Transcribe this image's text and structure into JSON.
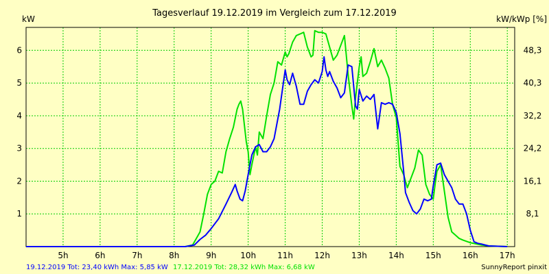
{
  "chart_data": {
    "type": "line",
    "title": "Tagesverlauf 19.12.2019 im Vergleich zum 17.12.2019",
    "ylabel_left": "kW",
    "ylabel_right": "kW/kWp [%]",
    "x_ticks": [
      "5h",
      "6h",
      "7h",
      "8h",
      "9h",
      "10h",
      "11h",
      "12h",
      "13h",
      "14h",
      "15h",
      "16h",
      "17h"
    ],
    "x_tick_values": [
      5,
      6,
      7,
      8,
      9,
      10,
      11,
      12,
      13,
      14,
      15,
      16,
      17
    ],
    "y_ticks_left": [
      "1",
      "2",
      "3",
      "4",
      "5",
      "6"
    ],
    "y_tick_values_left": [
      1,
      2,
      3,
      4,
      5,
      6
    ],
    "y_ticks_right": [
      "8,1",
      "16,1",
      "24,2",
      "32,2",
      "40,3",
      "48,3"
    ],
    "xlim": [
      4.0,
      17.2
    ],
    "ylim": [
      0,
      6.7
    ],
    "grid": true,
    "series": [
      {
        "name": "19.12.2019",
        "color": "#0000FF",
        "x": [
          4.0,
          8.3,
          8.55,
          8.7,
          8.85,
          9.0,
          9.2,
          9.4,
          9.55,
          9.65,
          9.7,
          9.78,
          9.85,
          9.92,
          10.0,
          10.1,
          10.2,
          10.3,
          10.4,
          10.5,
          10.6,
          10.7,
          10.85,
          11.0,
          11.05,
          11.12,
          11.2,
          11.3,
          11.4,
          11.5,
          11.6,
          11.7,
          11.8,
          11.9,
          12.0,
          12.05,
          12.1,
          12.15,
          12.2,
          12.3,
          12.4,
          12.5,
          12.6,
          12.7,
          12.8,
          12.9,
          12.95,
          13.0,
          13.1,
          13.2,
          13.3,
          13.4,
          13.5,
          13.6,
          13.7,
          13.8,
          13.9,
          14.0,
          14.1,
          14.2,
          14.25,
          14.35,
          14.45,
          14.55,
          14.65,
          14.75,
          14.85,
          14.95,
          15.0,
          15.1,
          15.2,
          15.3,
          15.4,
          15.5,
          15.6,
          15.7,
          15.8,
          15.9,
          16.0,
          16.1,
          16.2,
          16.3,
          16.4,
          16.5,
          17.0
        ],
        "y": [
          0,
          0,
          0.05,
          0.22,
          0.35,
          0.55,
          0.85,
          1.3,
          1.65,
          1.9,
          1.7,
          1.45,
          1.4,
          1.7,
          2.2,
          2.8,
          3.05,
          3.12,
          2.9,
          2.9,
          3.05,
          3.3,
          4.2,
          5.4,
          5.1,
          4.95,
          5.3,
          4.9,
          4.35,
          4.35,
          4.75,
          4.95,
          5.1,
          5.0,
          5.35,
          5.8,
          5.4,
          5.2,
          5.35,
          5.05,
          4.85,
          4.55,
          4.7,
          5.55,
          5.5,
          4.3,
          4.2,
          4.8,
          4.45,
          4.6,
          4.5,
          4.65,
          3.6,
          4.4,
          4.35,
          4.4,
          4.35,
          4.1,
          3.45,
          2.3,
          1.65,
          1.35,
          1.1,
          1.0,
          1.15,
          1.45,
          1.4,
          1.45,
          1.85,
          2.5,
          2.55,
          2.2,
          2.0,
          1.8,
          1.45,
          1.3,
          1.3,
          1.0,
          0.5,
          0.15,
          0.1,
          0.08,
          0.05,
          0.02,
          0
        ]
      },
      {
        "name": "17.12.2019",
        "color": "#00E000",
        "x": [
          4.0,
          8.3,
          8.5,
          8.6,
          8.7,
          8.8,
          8.9,
          9.0,
          9.1,
          9.2,
          9.3,
          9.4,
          9.5,
          9.6,
          9.7,
          9.75,
          9.8,
          9.85,
          9.9,
          9.95,
          10.0,
          10.05,
          10.1,
          10.2,
          10.25,
          10.3,
          10.4,
          10.5,
          10.6,
          10.7,
          10.8,
          10.9,
          11.0,
          11.05,
          11.1,
          11.2,
          11.3,
          11.4,
          11.5,
          11.6,
          11.7,
          11.75,
          11.8,
          11.9,
          12.0,
          12.1,
          12.2,
          12.3,
          12.4,
          12.5,
          12.6,
          12.7,
          12.8,
          12.85,
          12.9,
          13.0,
          13.05,
          13.1,
          13.2,
          13.3,
          13.4,
          13.5,
          13.6,
          13.7,
          13.8,
          13.9,
          14.0,
          14.1,
          14.2,
          14.3,
          14.4,
          14.5,
          14.6,
          14.7,
          14.8,
          14.9,
          15.0,
          15.05,
          15.1,
          15.2,
          15.3,
          15.4,
          15.5,
          15.6,
          15.7,
          15.8,
          16.0,
          16.3,
          16.5,
          17.0
        ],
        "y": [
          0,
          0,
          0.05,
          0.25,
          0.45,
          1.0,
          1.6,
          1.9,
          2.0,
          2.3,
          2.25,
          2.9,
          3.3,
          3.65,
          4.2,
          4.35,
          4.45,
          4.2,
          3.7,
          3.2,
          2.9,
          2.2,
          2.5,
          3.05,
          2.8,
          3.5,
          3.3,
          4.0,
          4.65,
          5.0,
          5.65,
          5.55,
          5.95,
          5.8,
          5.9,
          6.25,
          6.45,
          6.5,
          6.55,
          6.1,
          5.8,
          5.85,
          6.6,
          6.55,
          6.55,
          6.5,
          6.1,
          5.7,
          5.85,
          6.15,
          6.45,
          5.25,
          4.3,
          3.9,
          4.55,
          5.5,
          5.8,
          5.2,
          5.3,
          5.65,
          6.05,
          5.5,
          5.7,
          5.45,
          5.15,
          4.35,
          3.95,
          2.45,
          2.2,
          1.8,
          2.1,
          2.4,
          2.95,
          2.8,
          1.9,
          1.6,
          1.45,
          1.9,
          2.3,
          2.5,
          1.7,
          0.9,
          0.45,
          0.35,
          0.25,
          0.2,
          0.12,
          0.05,
          0.02,
          0
        ]
      }
    ]
  },
  "footer": {
    "series1_text": "19.12.2019 Tot: 23,40 kWh Max: 5,85 kW",
    "series2_text": "17.12.2019 Tot: 28,32 kWh Max: 6,68 kW",
    "credit": "SunnyReport pinxit"
  },
  "colors": {
    "background": "#FFFFC4",
    "grid": "#00CC00",
    "series1": "#0000FF",
    "series2": "#00E000"
  }
}
